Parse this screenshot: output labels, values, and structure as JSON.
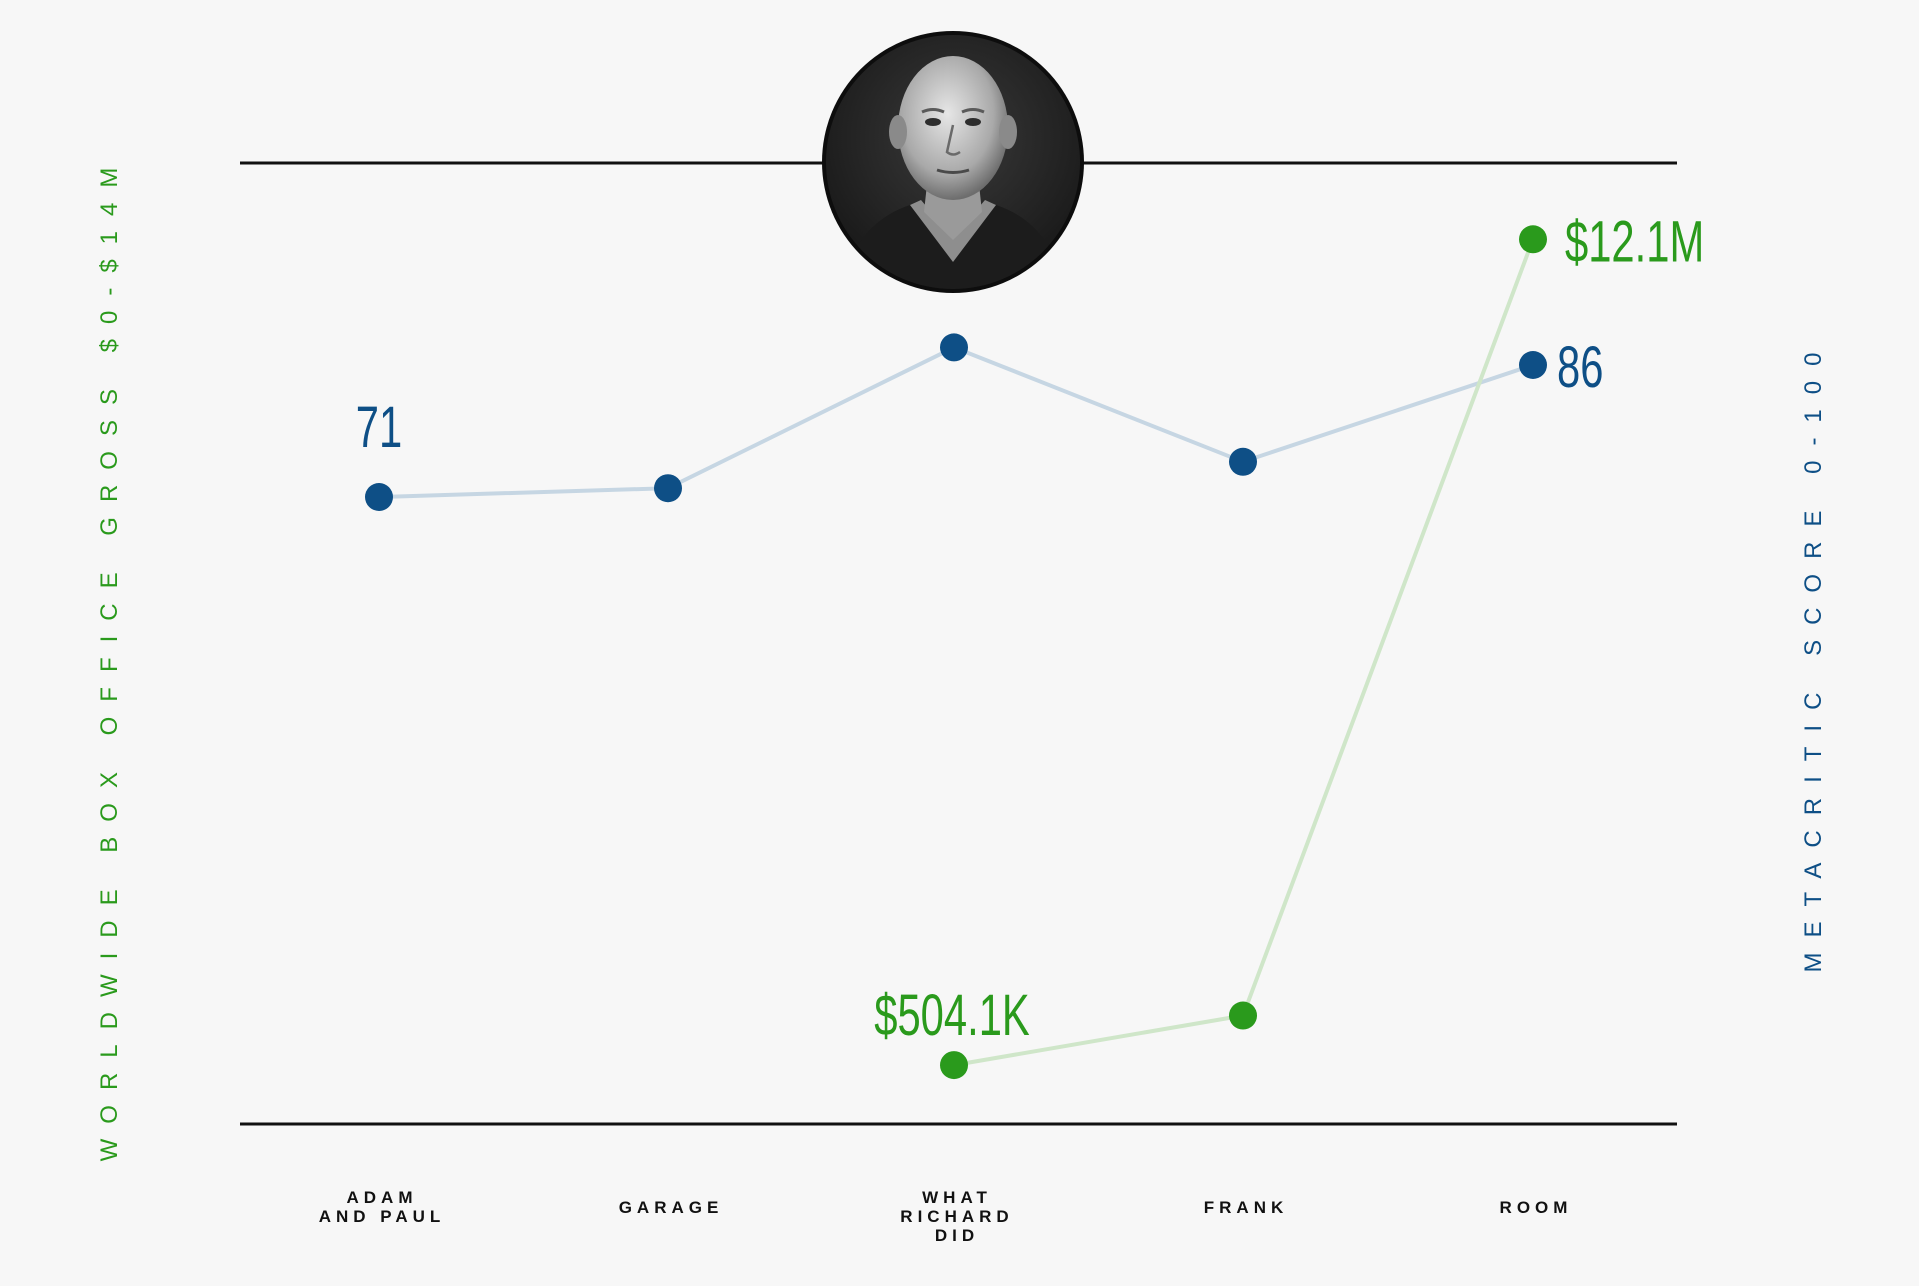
{
  "chart_data": {
    "type": "line",
    "categories": [
      [
        "ADAM",
        "AND PAUL"
      ],
      [
        "GARAGE"
      ],
      [
        "WHAT",
        "RICHARD",
        "DID"
      ],
      [
        "FRANK"
      ],
      [
        "ROOM"
      ]
    ],
    "series": [
      {
        "name": "Metacritic score",
        "axis": "right",
        "color": "#0e4f86",
        "values": [
          71,
          72,
          88,
          75,
          86
        ],
        "ylim": [
          0,
          100
        ]
      },
      {
        "name": "Worldwide box office gross",
        "axis": "left",
        "color": "#2a9a1c",
        "values": [
          null,
          null,
          0.5041,
          1.2,
          12.1
        ],
        "ylim": [
          0,
          14
        ]
      }
    ],
    "ylabel_left": "WORLDWIDE BOX OFFICE GROSS $0-$14M",
    "ylabel_right": "METACRITIC SCORE 0-100",
    "annotations": [
      {
        "series": 0,
        "index": 0,
        "text": "71"
      },
      {
        "series": 0,
        "index": 4,
        "text": "86"
      },
      {
        "series": 1,
        "index": 2,
        "text": "$504.1K"
      },
      {
        "series": 1,
        "index": 4,
        "text": "$12.1M"
      }
    ],
    "image": "director-portrait",
    "colors": {
      "metacritic_line": "#c6d6e3",
      "boxoffice_line": "#cfe6c9",
      "axis_rule": "#111111",
      "background": "#f7f7f7"
    }
  }
}
